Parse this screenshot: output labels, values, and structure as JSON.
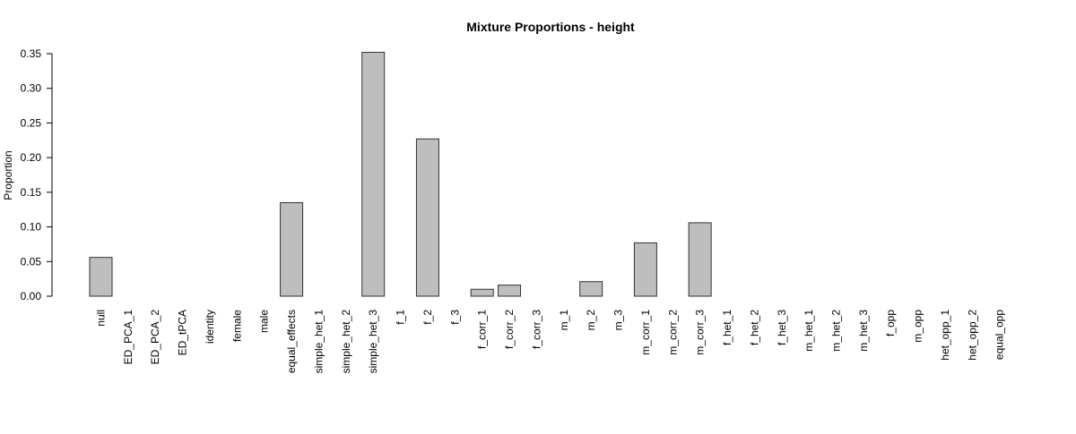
{
  "chart_data": {
    "type": "bar",
    "title": "Mixture Proportions - height",
    "xlabel": "",
    "ylabel": "Proportion",
    "ylim": [
      0,
      0.35
    ],
    "y_ticks": [
      "0.00",
      "0.05",
      "0.10",
      "0.15",
      "0.20",
      "0.25",
      "0.30",
      "0.35"
    ],
    "y_tick_values": [
      0,
      0.05,
      0.1,
      0.15,
      0.2,
      0.25,
      0.3,
      0.35
    ],
    "grid": false,
    "legend": "none",
    "bar_color": "#bebebe",
    "categories": [
      "null",
      "ED_PCA_1",
      "ED_PCA_2",
      "ED_tPCA",
      "identity",
      "female",
      "male",
      "equal_effects",
      "simple_het_1",
      "simple_het_2",
      "simple_het_3",
      "f_1",
      "f_2",
      "f_3",
      "f_corr_1",
      "f_corr_2",
      "f_corr_3",
      "m_1",
      "m_2",
      "m_3",
      "m_corr_1",
      "m_corr_2",
      "m_corr_3",
      "f_het_1",
      "f_het_2",
      "f_het_3",
      "m_het_1",
      "m_het_2",
      "m_het_3",
      "f_opp",
      "m_opp",
      "het_opp_1",
      "het_opp_2",
      "equal_opp"
    ],
    "values": [
      0.056,
      0,
      0,
      0,
      0,
      0,
      0,
      0.135,
      0,
      0,
      0.352,
      0,
      0.227,
      0,
      0.01,
      0.016,
      0,
      0,
      0.021,
      0,
      0.077,
      0,
      0.106,
      0,
      0,
      0,
      0,
      0,
      0,
      0,
      0,
      0,
      0,
      0
    ]
  }
}
